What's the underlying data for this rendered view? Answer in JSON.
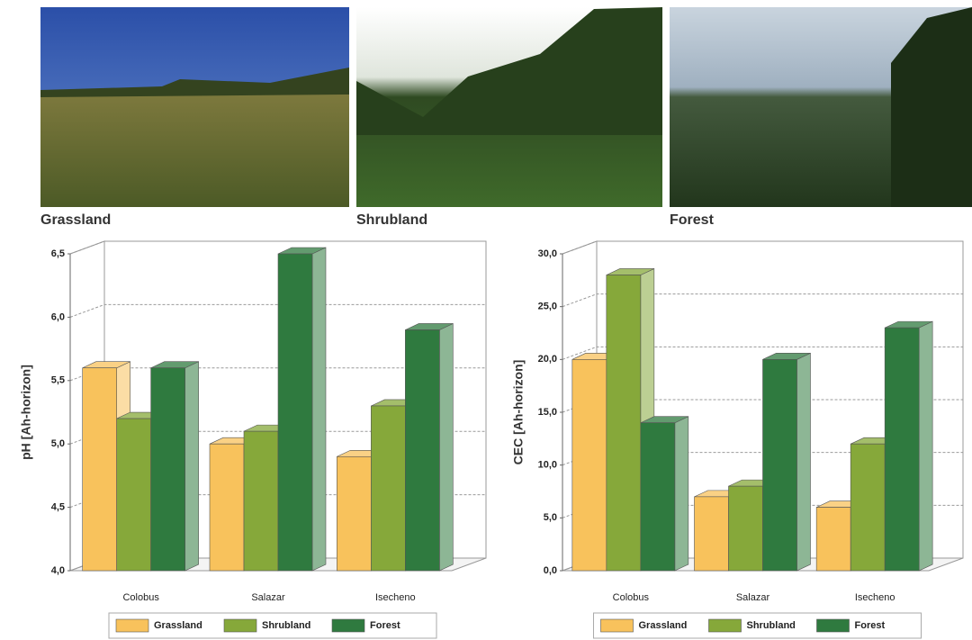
{
  "photos": {
    "captions": [
      "Grassland",
      "Shrubland",
      "Forest"
    ]
  },
  "chart_data": [
    {
      "type": "bar",
      "y_label": "pH [Ah-horizon]",
      "categories": [
        "Colobus",
        "Salazar",
        "Isecheno"
      ],
      "series": [
        {
          "name": "Grassland",
          "color": "#f8c25c",
          "values": [
            5.6,
            5.0,
            4.9
          ]
        },
        {
          "name": "Shrubland",
          "color": "#86a83a",
          "values": [
            5.2,
            5.1,
            5.3
          ]
        },
        {
          "name": "Forest",
          "color": "#2f7a3f",
          "values": [
            5.6,
            6.5,
            5.9
          ]
        }
      ],
      "ylim": [
        4,
        6.5
      ],
      "yticks": [
        {
          "value": 4,
          "label": "4,0"
        },
        {
          "value": 4.5,
          "label": "4,5"
        },
        {
          "value": 5,
          "label": "5,0"
        },
        {
          "value": 5.5,
          "label": "5,5"
        },
        {
          "value": 6,
          "label": "6,0"
        },
        {
          "value": 6.5,
          "label": "6,5"
        }
      ],
      "grid": true,
      "legend": "bottom"
    },
    {
      "type": "bar",
      "y_label": "CEC [Ah-horizon]",
      "categories": [
        "Colobus",
        "Salazar",
        "Isecheno"
      ],
      "series": [
        {
          "name": "Grassland",
          "color": "#f8c25c",
          "values": [
            20,
            7,
            6
          ]
        },
        {
          "name": "Shrubland",
          "color": "#86a83a",
          "values": [
            28,
            8,
            12
          ]
        },
        {
          "name": "Forest",
          "color": "#2f7a3f",
          "values": [
            14,
            20,
            23
          ]
        }
      ],
      "ylim": [
        0,
        30
      ],
      "yticks": [
        {
          "value": 0,
          "label": "0,0"
        },
        {
          "value": 5,
          "label": "5,0"
        },
        {
          "value": 10,
          "label": "10,0"
        },
        {
          "value": 15,
          "label": "15,0"
        },
        {
          "value": 20,
          "label": "20,0"
        },
        {
          "value": 25,
          "label": "25,0"
        },
        {
          "value": 30,
          "label": "30,0"
        }
      ],
      "grid": true,
      "legend": "bottom"
    }
  ]
}
